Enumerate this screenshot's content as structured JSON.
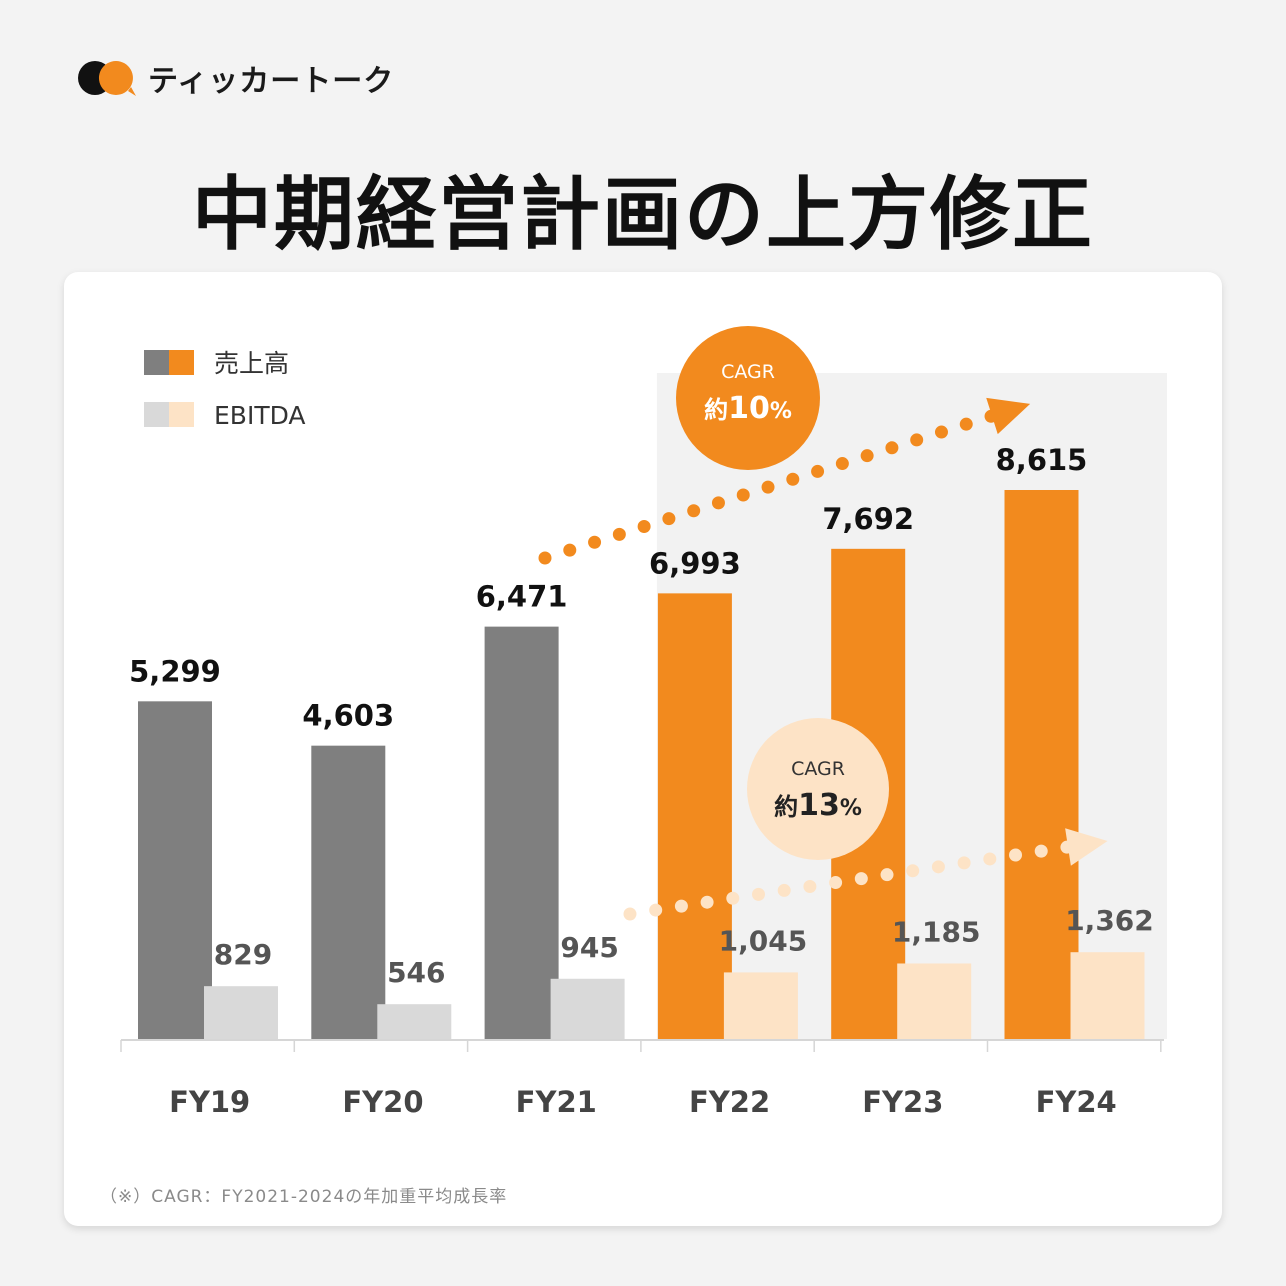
{
  "brand": {
    "name": "ティッカートーク",
    "logo": "speech-bubble-logo",
    "colors": [
      "#111111",
      "#f28a1e"
    ]
  },
  "title": "中期経営計画の上方修正",
  "colors": {
    "revenue_actual": "#7f7f7f",
    "revenue_plan": "#f28a1e",
    "ebitda_actual": "#d9d9d9",
    "ebitda_plan": "#fde3c6",
    "plan_shade": "#f2f2f2",
    "revenue_arrow": "#f28a1e",
    "ebitda_arrow": "#fde3c6"
  },
  "chart_data": {
    "type": "bar",
    "title": "中期経営計画の上方修正",
    "categories": [
      "FY19",
      "FY20",
      "FY21",
      "FY22",
      "FY23",
      "FY24"
    ],
    "series": [
      {
        "name": "売上高",
        "values": [
          5299,
          4603,
          6471,
          6993,
          7692,
          8615
        ],
        "labels": [
          "5,299",
          "4,603",
          "6,471",
          "6,993",
          "7,692",
          "8,615"
        ]
      },
      {
        "name": "EBITDA",
        "values": [
          829,
          546,
          945,
          1045,
          1185,
          1362
        ],
        "labels": [
          "829",
          "546",
          "945",
          "1,045",
          "1,185",
          "1,362"
        ]
      }
    ],
    "ylim": [
      0,
      8615
    ],
    "grid": false,
    "legend": "top-left",
    "plan_range": [
      "FY22",
      "FY24"
    ],
    "annotations": [
      {
        "label": "CAGR",
        "value": "約10%",
        "number": "10",
        "prefix": "約",
        "unit": "%",
        "series": "売上高",
        "from": "FY21",
        "to": "FY24"
      },
      {
        "label": "CAGR",
        "value": "約13%",
        "number": "13",
        "prefix": "約",
        "unit": "%",
        "series": "EBITDA",
        "from": "FY21",
        "to": "FY24"
      }
    ]
  },
  "footnote": "（※）CAGR：FY2021-2024の年加重平均成長率"
}
